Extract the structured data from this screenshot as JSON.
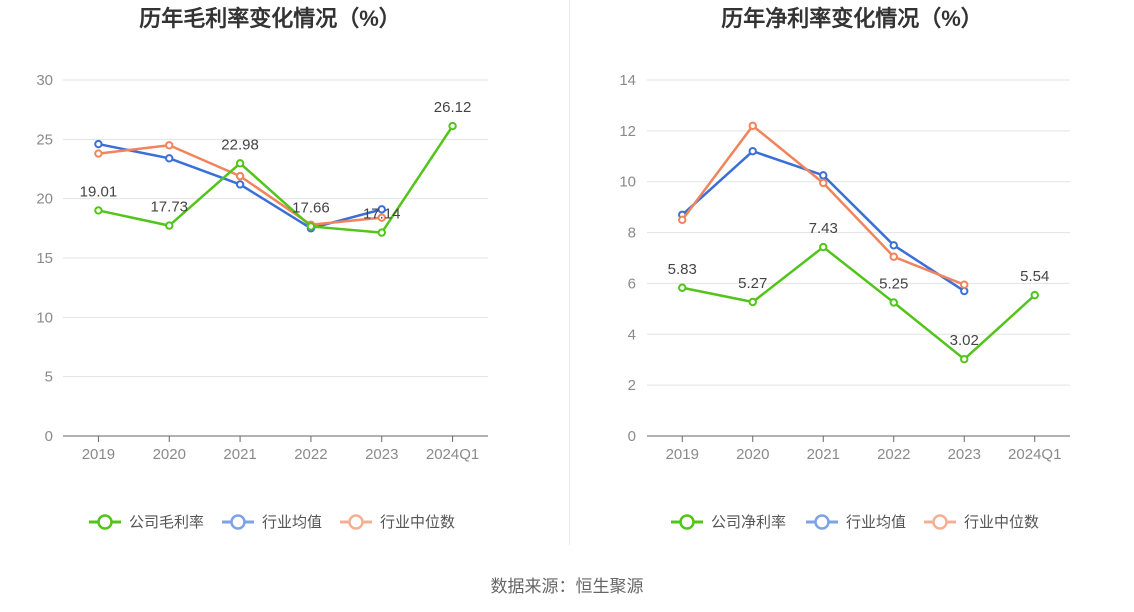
{
  "source_text": "数据来源：恒生聚源",
  "chart_data": [
    {
      "type": "line",
      "title": "历年毛利率变化情况（%）",
      "categories": [
        "2019",
        "2020",
        "2021",
        "2022",
        "2023",
        "2024Q1"
      ],
      "ylim": [
        0,
        30
      ],
      "yticks": [
        0,
        5,
        10,
        15,
        20,
        25,
        30
      ],
      "grid": true,
      "legend_position": "bottom",
      "series": [
        {
          "name": "公司毛利率",
          "color": "#52c41a",
          "values": [
            19.01,
            17.73,
            22.98,
            17.66,
            17.14,
            26.12
          ],
          "labels": [
            "19.01",
            "17.73",
            "22.98",
            "17.66",
            "17.14",
            "26.12"
          ]
        },
        {
          "name": "行业均值",
          "color": "#3a6fd8",
          "values": [
            24.6,
            23.4,
            21.2,
            17.5,
            19.1,
            null
          ]
        },
        {
          "name": "行业中位数",
          "color": "#f0845c",
          "values": [
            23.8,
            24.5,
            21.9,
            17.8,
            18.4,
            null
          ]
        }
      ]
    },
    {
      "type": "line",
      "title": "历年净利率变化情况（%）",
      "categories": [
        "2019",
        "2020",
        "2021",
        "2022",
        "2023",
        "2024Q1"
      ],
      "ylim": [
        0,
        14
      ],
      "yticks": [
        0,
        2,
        4,
        6,
        8,
        10,
        12,
        14
      ],
      "grid": true,
      "legend_position": "bottom",
      "series": [
        {
          "name": "公司净利率",
          "color": "#52c41a",
          "values": [
            5.83,
            5.27,
            7.43,
            5.25,
            3.02,
            5.54
          ],
          "labels": [
            "5.83",
            "5.27",
            "7.43",
            "5.25",
            "3.02",
            "5.54"
          ]
        },
        {
          "name": "行业均值",
          "color": "#3a6fd8",
          "values": [
            8.7,
            11.2,
            10.25,
            7.5,
            5.7,
            null
          ]
        },
        {
          "name": "行业中位数",
          "color": "#f0845c",
          "values": [
            8.5,
            12.2,
            9.95,
            7.05,
            5.95,
            null
          ]
        }
      ]
    }
  ]
}
